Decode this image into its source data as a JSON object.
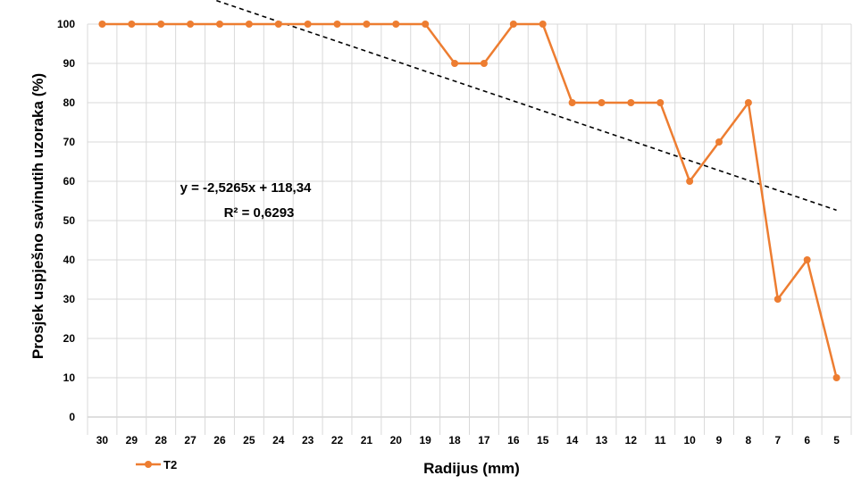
{
  "chart_data": {
    "type": "line",
    "title": "",
    "xlabel": "Radijus (mm)",
    "ylabel": "Prosjek  uspješno savinutih uzoraka (%)",
    "categories": [
      "30",
      "29",
      "28",
      "27",
      "26",
      "25",
      "24",
      "23",
      "22",
      "21",
      "20",
      "19",
      "18",
      "17",
      "16",
      "15",
      "14",
      "13",
      "12",
      "11",
      "10",
      "9",
      "8",
      "7",
      "6",
      "5"
    ],
    "series": [
      {
        "name": "T2",
        "color": "#ED7D31",
        "values": [
          100,
          100,
          100,
          100,
          100,
          100,
          100,
          100,
          100,
          100,
          100,
          100,
          90,
          90,
          100,
          100,
          80,
          80,
          80,
          80,
          60,
          70,
          80,
          30,
          40,
          10
        ]
      }
    ],
    "trendline": {
      "type": "linear",
      "slope": -2.5265,
      "intercept": 118.34,
      "equation_label": "y = -2,5265x + 118,34",
      "r2_label": "R² = 0,6293",
      "color": "#000000"
    },
    "ylim": [
      0,
      100
    ],
    "yticks": [
      0,
      10,
      20,
      30,
      40,
      50,
      60,
      70,
      80,
      90,
      100
    ],
    "grid": true,
    "legend_position": "bottom-left"
  }
}
